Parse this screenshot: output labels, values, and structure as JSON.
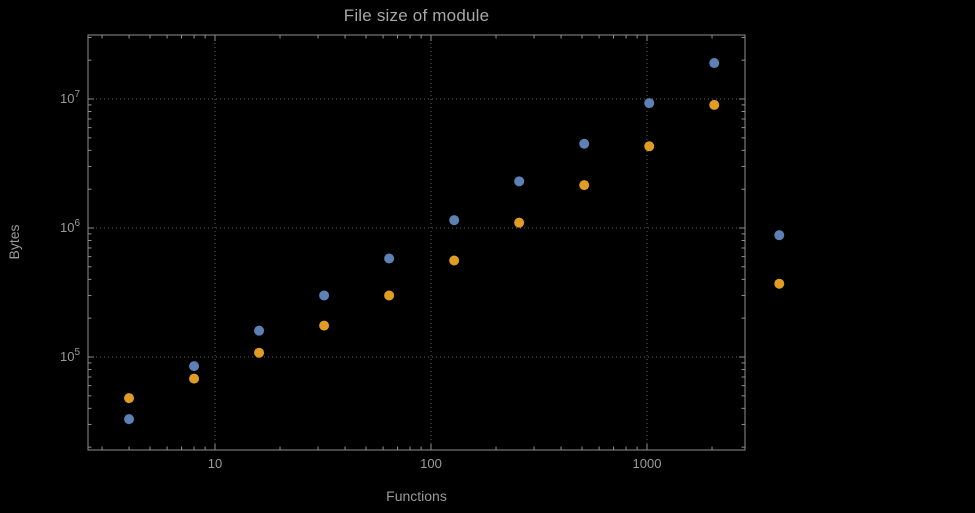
{
  "chart_data": {
    "type": "scatter",
    "title": "File size of module",
    "xlabel": "Functions",
    "ylabel": "Bytes",
    "x_scale": "log",
    "y_scale": "log",
    "grid": "dotted",
    "legend": "none",
    "x_ticks": [
      10,
      100,
      1000
    ],
    "x_tick_labels": [
      "10",
      "100",
      "1000"
    ],
    "y_ticks": [
      100000,
      1000000,
      10000000
    ],
    "y_tick_exponents": [
      5,
      6,
      7
    ],
    "x": [
      4,
      8,
      16,
      32,
      64,
      128,
      256,
      512,
      1024,
      2048,
      4096
    ],
    "series": [
      {
        "name": "blue-series",
        "color": "#5e81b5",
        "values": [
          33000,
          85000,
          160000,
          300000,
          580000,
          1150000,
          2300000,
          4500000,
          9300000,
          19000000,
          880000
        ]
      },
      {
        "name": "orange-series",
        "color": "#e19c24",
        "values": [
          48000,
          68000,
          108000,
          175000,
          300000,
          560000,
          1100000,
          2150000,
          4300000,
          9000000,
          370000
        ]
      }
    ],
    "colors": {
      "background": "#000000",
      "frame": "#8f8f8f",
      "grid": "#5f5f5f",
      "text": "#9a9a9a",
      "title": "#a8a8a8"
    }
  }
}
